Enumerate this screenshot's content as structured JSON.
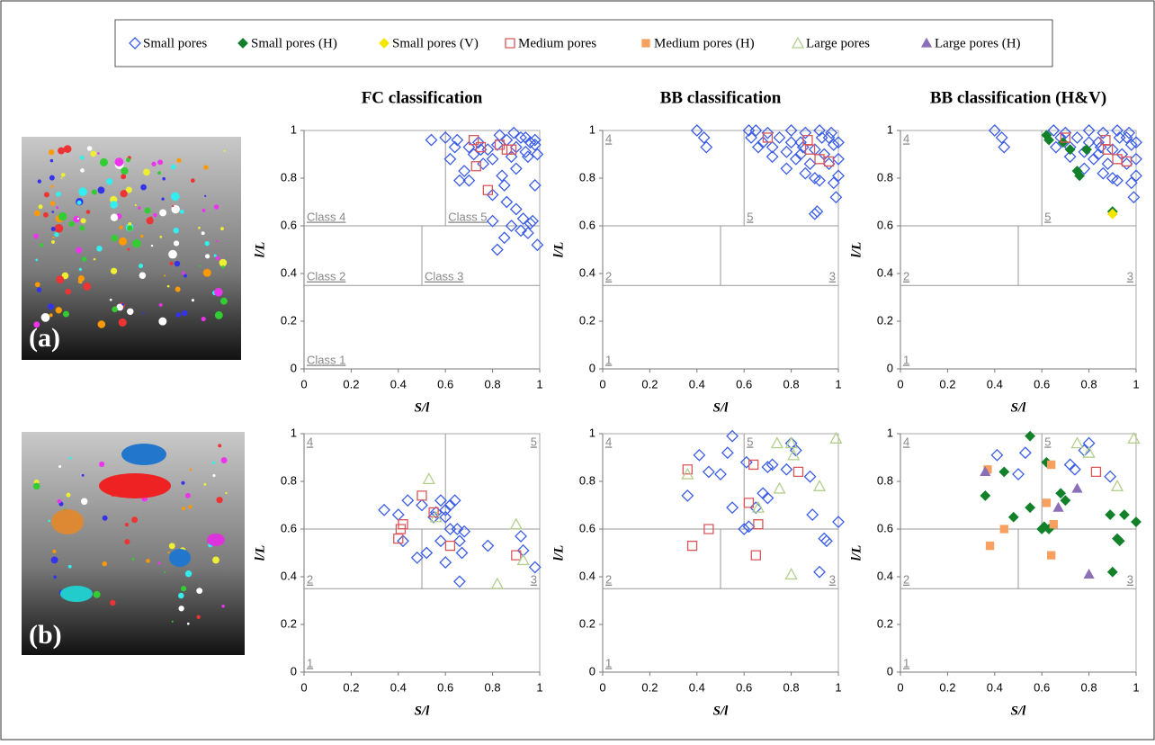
{
  "legend": [
    {
      "name": "Small pores",
      "marker": "diamond",
      "filled": false,
      "color": "#3b5de7"
    },
    {
      "name": "Small pores (H)",
      "marker": "diamond",
      "filled": true,
      "color": "#12812a"
    },
    {
      "name": "Small pores (V)",
      "marker": "diamond",
      "filled": true,
      "color": "#f3e600"
    },
    {
      "name": "Medium pores",
      "marker": "square",
      "filled": false,
      "color": "#d9575b"
    },
    {
      "name": "Medium pores (H)",
      "marker": "square",
      "filled": true,
      "color": "#f7a060"
    },
    {
      "name": "Large pores",
      "marker": "triangle",
      "filled": false,
      "color": "#b3cf8c"
    },
    {
      "name": "Large pores (H)",
      "marker": "triangle",
      "filled": true,
      "color": "#8b70b8"
    }
  ],
  "images": [
    {
      "label": "(a)"
    },
    {
      "label": "(b)"
    }
  ],
  "chart_data": [
    {
      "type": "scatter",
      "title": "FC classification",
      "xlabel": "S/l",
      "ylabel": "l/L",
      "xlim": [
        0,
        1
      ],
      "ylim": [
        0,
        1
      ],
      "xticks": [
        0,
        0.2,
        0.4,
        0.6,
        0.8,
        1
      ],
      "yticks": [
        0,
        0.2,
        0.4,
        0.6,
        0.8,
        1
      ],
      "boundaries": {
        "x": [
          0.5,
          0.6
        ],
        "y": [
          0.35,
          0.6
        ]
      },
      "region_labels": [
        "Class 1",
        "Class 2",
        "Class 3",
        "Class 4",
        "Class 5"
      ],
      "series": [
        {
          "name": "Small pores",
          "x": [
            0.54,
            0.6,
            0.62,
            0.64,
            0.66,
            0.68,
            0.7,
            0.72,
            0.74,
            0.76,
            0.78,
            0.8,
            0.82,
            0.84,
            0.86,
            0.88,
            0.9,
            0.92,
            0.94,
            0.96,
            0.98,
            0.99,
            0.65,
            0.7,
            0.75,
            0.8,
            0.85,
            0.9,
            0.95,
            0.98,
            0.8,
            0.85,
            0.9,
            0.95,
            0.82,
            0.88,
            0.93,
            0.97,
            0.86,
            0.92,
            0.96,
            0.99,
            0.83,
            0.89,
            0.94,
            0.98
          ],
          "y": [
            0.96,
            0.97,
            0.88,
            0.93,
            0.79,
            0.83,
            0.79,
            0.9,
            0.95,
            0.86,
            0.92,
            0.88,
            0.94,
            0.81,
            0.96,
            0.89,
            0.93,
            0.97,
            0.91,
            0.95,
            0.94,
            0.9,
            0.96,
            0.93,
            0.92,
            0.73,
            0.77,
            0.84,
            0.89,
            0.77,
            0.62,
            0.55,
            0.67,
            0.57,
            0.5,
            0.6,
            0.63,
            0.62,
            0.7,
            0.58,
            0.61,
            0.52,
            0.98,
            0.99,
            0.97,
            0.96
          ]
        },
        {
          "name": "Medium pores",
          "x": [
            0.72,
            0.75,
            0.83,
            0.86,
            0.88,
            0.78,
            0.73
          ],
          "y": [
            0.96,
            0.93,
            0.94,
            0.92,
            0.92,
            0.75,
            0.85
          ]
        }
      ]
    },
    {
      "type": "scatter",
      "title": "BB classification",
      "xlabel": "S/l",
      "ylabel": "l/L",
      "xlim": [
        0,
        1
      ],
      "ylim": [
        0,
        1
      ],
      "xticks": [
        0,
        0.2,
        0.4,
        0.6,
        0.8,
        1
      ],
      "yticks": [
        0,
        0.2,
        0.4,
        0.6,
        0.8,
        1
      ],
      "boundaries": {
        "x": [
          0.5,
          0.6
        ],
        "y": [
          0.35,
          0.6
        ]
      },
      "region_labels": [
        "1",
        "2",
        "3",
        "4",
        "5"
      ],
      "series": [
        {
          "name": "Small pores",
          "x": [
            0.4,
            0.43,
            0.44,
            0.62,
            0.63,
            0.65,
            0.68,
            0.7,
            0.72,
            0.75,
            0.78,
            0.8,
            0.82,
            0.84,
            0.86,
            0.88,
            0.9,
            0.92,
            0.94,
            0.96,
            0.98,
            1.0,
            0.66,
            0.72,
            0.78,
            0.84,
            0.9,
            0.96,
            1.0,
            0.8,
            0.86,
            0.92,
            0.98,
            0.9,
            0.91,
            0.99,
            0.85,
            0.93,
            0.97,
            1.0
          ],
          "y": [
            1.0,
            0.97,
            0.93,
            1.0,
            0.97,
            1.0,
            0.95,
            0.99,
            0.93,
            0.97,
            0.91,
            1.0,
            0.88,
            0.95,
            0.99,
            0.86,
            0.92,
            1.0,
            0.9,
            0.97,
            0.94,
            0.88,
            0.93,
            0.89,
            0.84,
            0.9,
            0.8,
            0.86,
            0.81,
            0.95,
            0.82,
            0.79,
            0.78,
            0.65,
            0.66,
            0.72,
            0.93,
            0.97,
            0.99,
            0.95
          ]
        },
        {
          "name": "Medium pores",
          "x": [
            0.7,
            0.87,
            0.88,
            0.92,
            0.96
          ],
          "y": [
            0.97,
            0.96,
            0.92,
            0.88,
            0.87
          ]
        }
      ]
    },
    {
      "type": "scatter",
      "title": "BB classification (H&V)",
      "xlabel": "S/l",
      "ylabel": "l/L",
      "xlim": [
        0,
        1
      ],
      "ylim": [
        0,
        1
      ],
      "xticks": [
        0,
        0.2,
        0.4,
        0.6,
        0.8,
        1
      ],
      "yticks": [
        0,
        0.2,
        0.4,
        0.6,
        0.8,
        1
      ],
      "boundaries": {
        "x": [
          0.5,
          0.6
        ],
        "y": [
          0.35,
          0.6
        ]
      },
      "region_labels": [
        "1",
        "2",
        "3",
        "4",
        "5"
      ],
      "series": [
        {
          "name": "Small pores",
          "x": [
            0.4,
            0.43,
            0.44,
            0.65,
            0.68,
            0.7,
            0.72,
            0.75,
            0.78,
            0.8,
            0.82,
            0.84,
            0.86,
            0.88,
            0.9,
            0.92,
            0.94,
            0.96,
            0.98,
            1.0,
            0.66,
            0.72,
            0.78,
            0.84,
            0.9,
            0.96,
            1.0,
            0.8,
            0.86,
            0.92,
            0.98,
            0.99,
            0.85,
            0.93,
            0.97,
            1.0
          ],
          "y": [
            1.0,
            0.97,
            0.93,
            1.0,
            0.97,
            0.99,
            0.93,
            0.97,
            0.91,
            1.0,
            0.88,
            0.95,
            0.99,
            0.86,
            0.92,
            1.0,
            0.9,
            0.97,
            0.94,
            0.88,
            0.93,
            0.89,
            0.84,
            0.9,
            0.8,
            0.86,
            0.81,
            0.95,
            0.82,
            0.79,
            0.78,
            0.72,
            0.93,
            0.97,
            0.99,
            0.95
          ]
        },
        {
          "name": "Small pores (H)",
          "x": [
            0.62,
            0.63,
            0.69,
            0.72,
            0.75,
            0.76,
            0.79,
            0.9
          ],
          "y": [
            0.98,
            0.96,
            0.95,
            0.92,
            0.83,
            0.81,
            0.92,
            0.66
          ]
        },
        {
          "name": "Small pores (V)",
          "x": [
            0.9
          ],
          "y": [
            0.65
          ]
        },
        {
          "name": "Medium pores",
          "x": [
            0.7,
            0.87,
            0.88,
            0.92,
            0.96
          ],
          "y": [
            0.97,
            0.96,
            0.92,
            0.88,
            0.87
          ]
        }
      ]
    },
    {
      "type": "scatter",
      "xlabel": "S/l",
      "ylabel": "l/L",
      "xlim": [
        0,
        1
      ],
      "ylim": [
        0,
        1
      ],
      "xticks": [
        0,
        0.2,
        0.4,
        0.6,
        0.8,
        1
      ],
      "yticks": [
        0,
        0.2,
        0.4,
        0.6,
        0.8,
        1
      ],
      "boundaries": {
        "x": [
          0.5,
          0.6
        ],
        "y": [
          0.35,
          0.6
        ]
      },
      "region_labels": [
        "1",
        "2",
        "3",
        "4",
        "5"
      ],
      "series": [
        {
          "name": "Small pores",
          "x": [
            0.34,
            0.4,
            0.42,
            0.44,
            0.48,
            0.5,
            0.52,
            0.55,
            0.56,
            0.58,
            0.6,
            0.6,
            0.62,
            0.64,
            0.65,
            0.66,
            0.67,
            0.68,
            0.58,
            0.66,
            0.62,
            0.6,
            0.78,
            0.92,
            0.93,
            0.98
          ],
          "y": [
            0.68,
            0.66,
            0.55,
            0.72,
            0.48,
            0.7,
            0.5,
            0.65,
            0.67,
            0.72,
            0.65,
            0.46,
            0.7,
            0.72,
            0.6,
            0.55,
            0.5,
            0.59,
            0.55,
            0.38,
            0.6,
            0.68,
            0.53,
            0.57,
            0.51,
            0.44
          ]
        },
        {
          "name": "Medium pores",
          "x": [
            0.4,
            0.41,
            0.42,
            0.5,
            0.55,
            0.62,
            0.9
          ],
          "y": [
            0.56,
            0.6,
            0.62,
            0.74,
            0.67,
            0.53,
            0.49
          ]
        },
        {
          "name": "Large pores",
          "x": [
            0.53,
            0.82,
            0.9,
            0.93,
            0.56
          ],
          "y": [
            0.81,
            0.37,
            0.62,
            0.47,
            0.65
          ]
        }
      ]
    },
    {
      "type": "scatter",
      "xlabel": "S/l",
      "ylabel": "l/L",
      "xlim": [
        0,
        1
      ],
      "ylim": [
        0,
        1
      ],
      "xticks": [
        0,
        0.2,
        0.4,
        0.6,
        0.8,
        1
      ],
      "yticks": [
        0,
        0.2,
        0.4,
        0.6,
        0.8,
        1
      ],
      "boundaries": {
        "x": [
          0.5,
          0.6
        ],
        "y": [
          0.35,
          0.6
        ]
      },
      "region_labels": [
        "1",
        "2",
        "3",
        "4",
        "5"
      ],
      "series": [
        {
          "name": "Small pores",
          "x": [
            0.36,
            0.41,
            0.45,
            0.5,
            0.53,
            0.55,
            0.6,
            0.61,
            0.62,
            0.65,
            0.68,
            0.7,
            0.72,
            0.78,
            0.8,
            0.82,
            0.88,
            0.89,
            0.92,
            0.94,
            0.95,
            1.0,
            0.55,
            0.7
          ],
          "y": [
            0.74,
            0.91,
            0.84,
            0.83,
            0.92,
            0.99,
            0.6,
            0.88,
            0.61,
            0.69,
            0.75,
            0.73,
            0.87,
            0.85,
            0.96,
            0.93,
            0.82,
            0.66,
            0.42,
            0.56,
            0.55,
            0.63,
            0.69,
            0.86
          ]
        },
        {
          "name": "Medium pores",
          "x": [
            0.36,
            0.38,
            0.45,
            0.62,
            0.64,
            0.65,
            0.66,
            0.83
          ],
          "y": [
            0.85,
            0.53,
            0.6,
            0.71,
            0.87,
            0.49,
            0.62,
            0.84
          ]
        },
        {
          "name": "Large pores",
          "x": [
            0.36,
            0.66,
            0.74,
            0.75,
            0.8,
            0.81,
            0.92,
            0.99,
            0.8
          ],
          "y": [
            0.83,
            0.69,
            0.96,
            0.77,
            0.41,
            0.91,
            0.78,
            0.98,
            0.96
          ]
        }
      ]
    },
    {
      "type": "scatter",
      "xlabel": "S/l",
      "ylabel": "l/L",
      "xlim": [
        0,
        1
      ],
      "ylim": [
        0,
        1
      ],
      "xticks": [
        0,
        0.2,
        0.4,
        0.6,
        0.8,
        1
      ],
      "yticks": [
        0,
        0.2,
        0.4,
        0.6,
        0.8,
        1
      ],
      "boundaries": {
        "x": [
          0.5,
          0.6
        ],
        "y": [
          0.35,
          0.6
        ]
      },
      "region_labels": [
        "1",
        "2",
        "3",
        "4",
        "5"
      ],
      "series": [
        {
          "name": "Small pores",
          "x": [
            0.41,
            0.5,
            0.53,
            0.72,
            0.74,
            0.78,
            0.8,
            0.89
          ],
          "y": [
            0.91,
            0.83,
            0.92,
            0.87,
            0.85,
            0.93,
            0.96,
            0.82
          ]
        },
        {
          "name": "Small pores (H)",
          "x": [
            0.36,
            0.44,
            0.48,
            0.55,
            0.55,
            0.6,
            0.61,
            0.62,
            0.63,
            0.68,
            0.7,
            0.89,
            0.9,
            0.92,
            0.93,
            0.95,
            1.0
          ],
          "y": [
            0.74,
            0.84,
            0.65,
            0.69,
            0.99,
            0.6,
            0.61,
            0.88,
            0.6,
            0.75,
            0.72,
            0.66,
            0.42,
            0.56,
            0.55,
            0.66,
            0.63
          ]
        },
        {
          "name": "Medium pores (H)",
          "x": [
            0.37,
            0.38,
            0.44,
            0.62,
            0.64,
            0.64,
            0.65
          ],
          "y": [
            0.85,
            0.53,
            0.6,
            0.71,
            0.87,
            0.49,
            0.62
          ]
        },
        {
          "name": "Medium pores",
          "x": [
            0.83
          ],
          "y": [
            0.84
          ]
        },
        {
          "name": "Large pores",
          "x": [
            0.75,
            0.8,
            0.92,
            0.99
          ],
          "y": [
            0.96,
            0.92,
            0.78,
            0.98
          ]
        },
        {
          "name": "Large pores (H)",
          "x": [
            0.36,
            0.67,
            0.75,
            0.8
          ],
          "y": [
            0.84,
            0.69,
            0.77,
            0.41
          ]
        }
      ]
    }
  ]
}
